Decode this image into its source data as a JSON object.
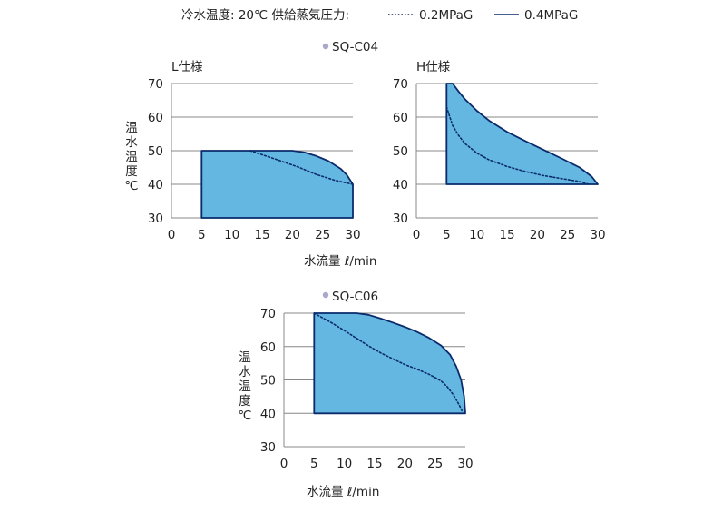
{
  "header": {
    "conditions": "冷水温度: 20℃  供給蒸気圧力:",
    "legend_low": "0.2MPaG",
    "legend_high": "0.4MPaG"
  },
  "colors": {
    "fill": "#63b7e0",
    "outline": "#0a2a6b",
    "dotted": "#0a2a6b",
    "grid": "#888888",
    "model_dot": "#a8a8c8"
  },
  "groups": [
    {
      "model": "SQ-C04",
      "xlabel": "水流量  ℓ/min",
      "ylabel": "温水温度℃"
    },
    {
      "model": "SQ-C06",
      "xlabel": "水流量  ℓ/min",
      "ylabel": "温水温度℃"
    }
  ],
  "chart_data": [
    {
      "type": "area",
      "model": "SQ-C04",
      "title": "L仕様",
      "xlabel": "水流量  ℓ/min",
      "ylabel": "温水温度℃",
      "xlim": [
        0,
        30
      ],
      "ylim": [
        30,
        70
      ],
      "xticks": [
        0,
        5,
        10,
        15,
        20,
        25,
        30
      ],
      "yticks": [
        30,
        40,
        50,
        60,
        70
      ],
      "grid": true,
      "series": [
        {
          "name": "0.4MPaG",
          "style": "solid",
          "x": [
            5,
            20,
            22,
            24,
            26,
            28,
            29,
            30,
            30,
            5
          ],
          "y": [
            50,
            50,
            49.5,
            48.4,
            46.9,
            44.6,
            42.8,
            40,
            30,
            30
          ]
        },
        {
          "name": "0.2MPaG",
          "style": "dotted",
          "x": [
            13,
            15,
            18,
            21,
            24,
            27,
            30
          ],
          "y": [
            50,
            48.8,
            47,
            45.1,
            42.9,
            41.2,
            40
          ]
        }
      ]
    },
    {
      "type": "area",
      "model": "SQ-C04",
      "title": "H仕様",
      "xlabel": "水流量  ℓ/min",
      "ylabel": "",
      "xlim": [
        0,
        30
      ],
      "ylim": [
        30,
        70
      ],
      "xticks": [
        0,
        5,
        10,
        15,
        20,
        25,
        30
      ],
      "yticks": [
        30,
        40,
        50,
        60,
        70
      ],
      "grid": true,
      "series": [
        {
          "name": "0.4MPaG",
          "style": "solid",
          "x": [
            5,
            6,
            7,
            8,
            10,
            12,
            15,
            18,
            21,
            24,
            27,
            29,
            30,
            5
          ],
          "y": [
            70,
            70,
            67.6,
            65.4,
            61.9,
            59,
            55.6,
            52.9,
            50.3,
            47.7,
            45,
            42.3,
            40,
            40
          ]
        },
        {
          "name": "0.2MPaG",
          "style": "dotted",
          "x": [
            5,
            6,
            7,
            8,
            10,
            12,
            15,
            18,
            21,
            24,
            27,
            28.5
          ],
          "y": [
            63,
            57.5,
            54.5,
            52.2,
            49.3,
            47.3,
            45.3,
            43.8,
            42.6,
            41.7,
            40.8,
            40
          ]
        }
      ]
    },
    {
      "type": "area",
      "model": "SQ-C06",
      "title": "",
      "xlabel": "水流量  ℓ/min",
      "ylabel": "温水温度℃",
      "xlim": [
        0,
        30
      ],
      "ylim": [
        30,
        70
      ],
      "xticks": [
        0,
        5,
        10,
        15,
        20,
        25,
        30
      ],
      "yticks": [
        30,
        40,
        50,
        60,
        70
      ],
      "grid": true,
      "series": [
        {
          "name": "0.4MPaG",
          "style": "solid",
          "x": [
            5,
            12,
            14,
            16,
            18,
            20,
            22,
            24,
            26,
            27.5,
            28.5,
            29.3,
            29.8,
            30,
            30,
            5
          ],
          "y": [
            70,
            70,
            69.5,
            68.4,
            67.2,
            65.9,
            64.4,
            62.6,
            60.3,
            57.5,
            54,
            50,
            45,
            40,
            40,
            40
          ]
        },
        {
          "name": "0.2MPaG",
          "style": "dotted",
          "x": [
            5,
            8,
            10,
            12,
            14,
            16,
            18,
            20,
            22,
            24,
            26,
            27,
            28,
            29,
            29.5
          ],
          "y": [
            70,
            67,
            64.8,
            62.5,
            60.2,
            58.1,
            56.3,
            54.6,
            53.2,
            51.7,
            49.7,
            48,
            45.6,
            42.5,
            40.5
          ]
        }
      ]
    }
  ]
}
